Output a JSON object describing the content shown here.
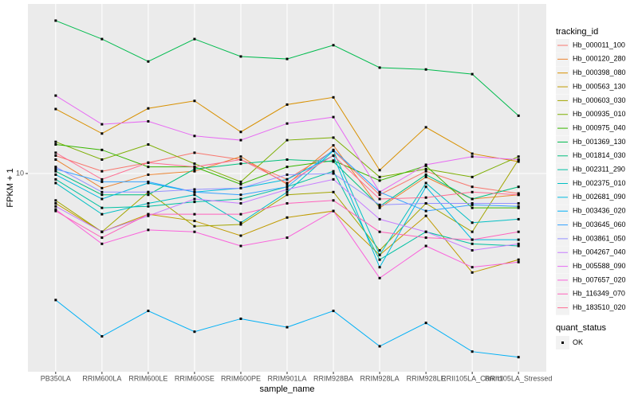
{
  "chart_data": {
    "type": "line",
    "x_label": "sample_name",
    "y_label": "FPKM + 1",
    "categories": [
      "PB350LA",
      "RRIM600LA",
      "RRIM600LE",
      "RRIM600SE",
      "RRIM600PE",
      "RRIM901LA",
      "RRIM928BA",
      "RRIM928LA",
      "RRIM928LE",
      "RRII105LA_Control",
      "RRII105LA_Stressed"
    ],
    "ylim": [
      1.76,
      44.2
    ],
    "yticks": [
      10
    ],
    "log_y": true,
    "grid": true,
    "legend_title": "tracking_id",
    "point_legend_title": "quant_status",
    "point_legend_label": "OK",
    "point_color": "#000000",
    "series": [
      {
        "name": "Hb_000011_100",
        "color": "#F8766D",
        "values": [
          11.7,
          10.2,
          11.0,
          12.0,
          11.3,
          9.5,
          12.2,
          8.3,
          10.2,
          8.9,
          8.4
        ]
      },
      {
        "name": "Hb_000120_280",
        "color": "#EA8331",
        "values": [
          11.3,
          8.8,
          9.9,
          10.2,
          11.6,
          9.1,
          12.8,
          7.4,
          9.7,
          8.0,
          8.3
        ]
      },
      {
        "name": "Hb_000398_080",
        "color": "#D89000",
        "values": [
          17.6,
          14.2,
          17.7,
          18.9,
          14.4,
          18.3,
          19.5,
          10.3,
          15.0,
          11.9,
          11.1
        ]
      },
      {
        "name": "Hb_000563_130",
        "color": "#C09B00",
        "values": [
          7.7,
          6.0,
          7.0,
          6.6,
          5.8,
          6.8,
          7.2,
          4.9,
          6.9,
          4.2,
          4.7
        ]
      },
      {
        "name": "Hb_000603_030",
        "color": "#A3A500",
        "values": [
          7.9,
          6.0,
          8.5,
          6.3,
          6.4,
          8.3,
          8.5,
          5.1,
          7.7,
          6.0,
          11.3
        ]
      },
      {
        "name": "Hb_000935_010",
        "color": "#7CAE00",
        "values": [
          13.2,
          11.3,
          12.9,
          10.9,
          9.3,
          13.4,
          13.7,
          9.7,
          10.4,
          9.7,
          11.6
        ]
      },
      {
        "name": "Hb_000975_040",
        "color": "#39B600",
        "values": [
          12.9,
          12.3,
          10.6,
          10.6,
          9.1,
          10.6,
          11.2,
          9.4,
          10.7,
          7.4,
          7.4
        ]
      },
      {
        "name": "Hb_001369_130",
        "color": "#00BB4E",
        "values": [
          38.2,
          32.5,
          26.7,
          32.5,
          27.9,
          27.3,
          30.8,
          25.3,
          24.9,
          23.9,
          16.6
        ]
      },
      {
        "name": "Hb_001814_030",
        "color": "#00BF7D",
        "values": [
          10.2,
          8.3,
          8.3,
          10.4,
          10.9,
          11.3,
          11.1,
          7.5,
          9.9,
          8.0,
          8.9
        ]
      },
      {
        "name": "Hb_002311_290",
        "color": "#00C1A3",
        "values": [
          9.5,
          7.4,
          7.5,
          7.8,
          8.0,
          8.9,
          10.2,
          4.7,
          6.0,
          5.4,
          5.3
        ]
      },
      {
        "name": "Hb_002375_010",
        "color": "#00BFC4",
        "values": [
          9.2,
          7.0,
          7.7,
          8.3,
          6.5,
          8.5,
          12.2,
          4.9,
          9.2,
          6.5,
          6.7
        ]
      },
      {
        "name": "Hb_002681_090",
        "color": "#00BAE0",
        "values": [
          9.9,
          8.0,
          9.2,
          8.5,
          8.8,
          9.5,
          11.7,
          4.4,
          8.9,
          5.6,
          5.6
        ]
      },
      {
        "name": "Hb_003436_020",
        "color": "#00B0F6",
        "values": [
          3.3,
          2.4,
          3.0,
          2.5,
          2.8,
          2.6,
          3.0,
          2.2,
          2.7,
          2.1,
          2.0
        ]
      },
      {
        "name": "Hb_003645_060",
        "color": "#35A2FF",
        "values": [
          10.4,
          9.3,
          9.3,
          8.5,
          8.3,
          8.9,
          12.3,
          8.5,
          7.2,
          7.6,
          7.5
        ]
      },
      {
        "name": "Hb_003861_050",
        "color": "#9590FF",
        "values": [
          10.6,
          8.5,
          8.5,
          8.7,
          8.8,
          9.9,
          10.0,
          7.6,
          7.7,
          7.7,
          7.7
        ]
      },
      {
        "name": "Hb_004267_040",
        "color": "#C77CFF",
        "values": [
          7.5,
          6.0,
          6.9,
          8.0,
          7.7,
          8.7,
          9.5,
          6.7,
          6.0,
          5.1,
          5.4
        ]
      },
      {
        "name": "Hb_005588_090",
        "color": "#E76BF3",
        "values": [
          19.8,
          15.4,
          15.8,
          13.9,
          13.4,
          15.5,
          16.4,
          8.5,
          10.8,
          11.6,
          11.3
        ]
      },
      {
        "name": "Hb_007657_020",
        "color": "#FA62DB",
        "values": [
          7.3,
          5.4,
          6.1,
          6.0,
          5.3,
          5.7,
          7.2,
          4.0,
          5.3,
          4.4,
          4.6
        ]
      },
      {
        "name": "Hb_116349_070",
        "color": "#FF62BC",
        "values": [
          7.2,
          5.7,
          7.0,
          7.0,
          7.0,
          7.7,
          7.9,
          6.0,
          5.7,
          5.6,
          6.0
        ]
      },
      {
        "name": "Hb_183510_020",
        "color": "#FF6C91",
        "values": [
          12.0,
          9.5,
          11.0,
          10.6,
          11.3,
          9.2,
          11.7,
          8.0,
          8.1,
          8.5,
          8.3
        ]
      }
    ]
  }
}
